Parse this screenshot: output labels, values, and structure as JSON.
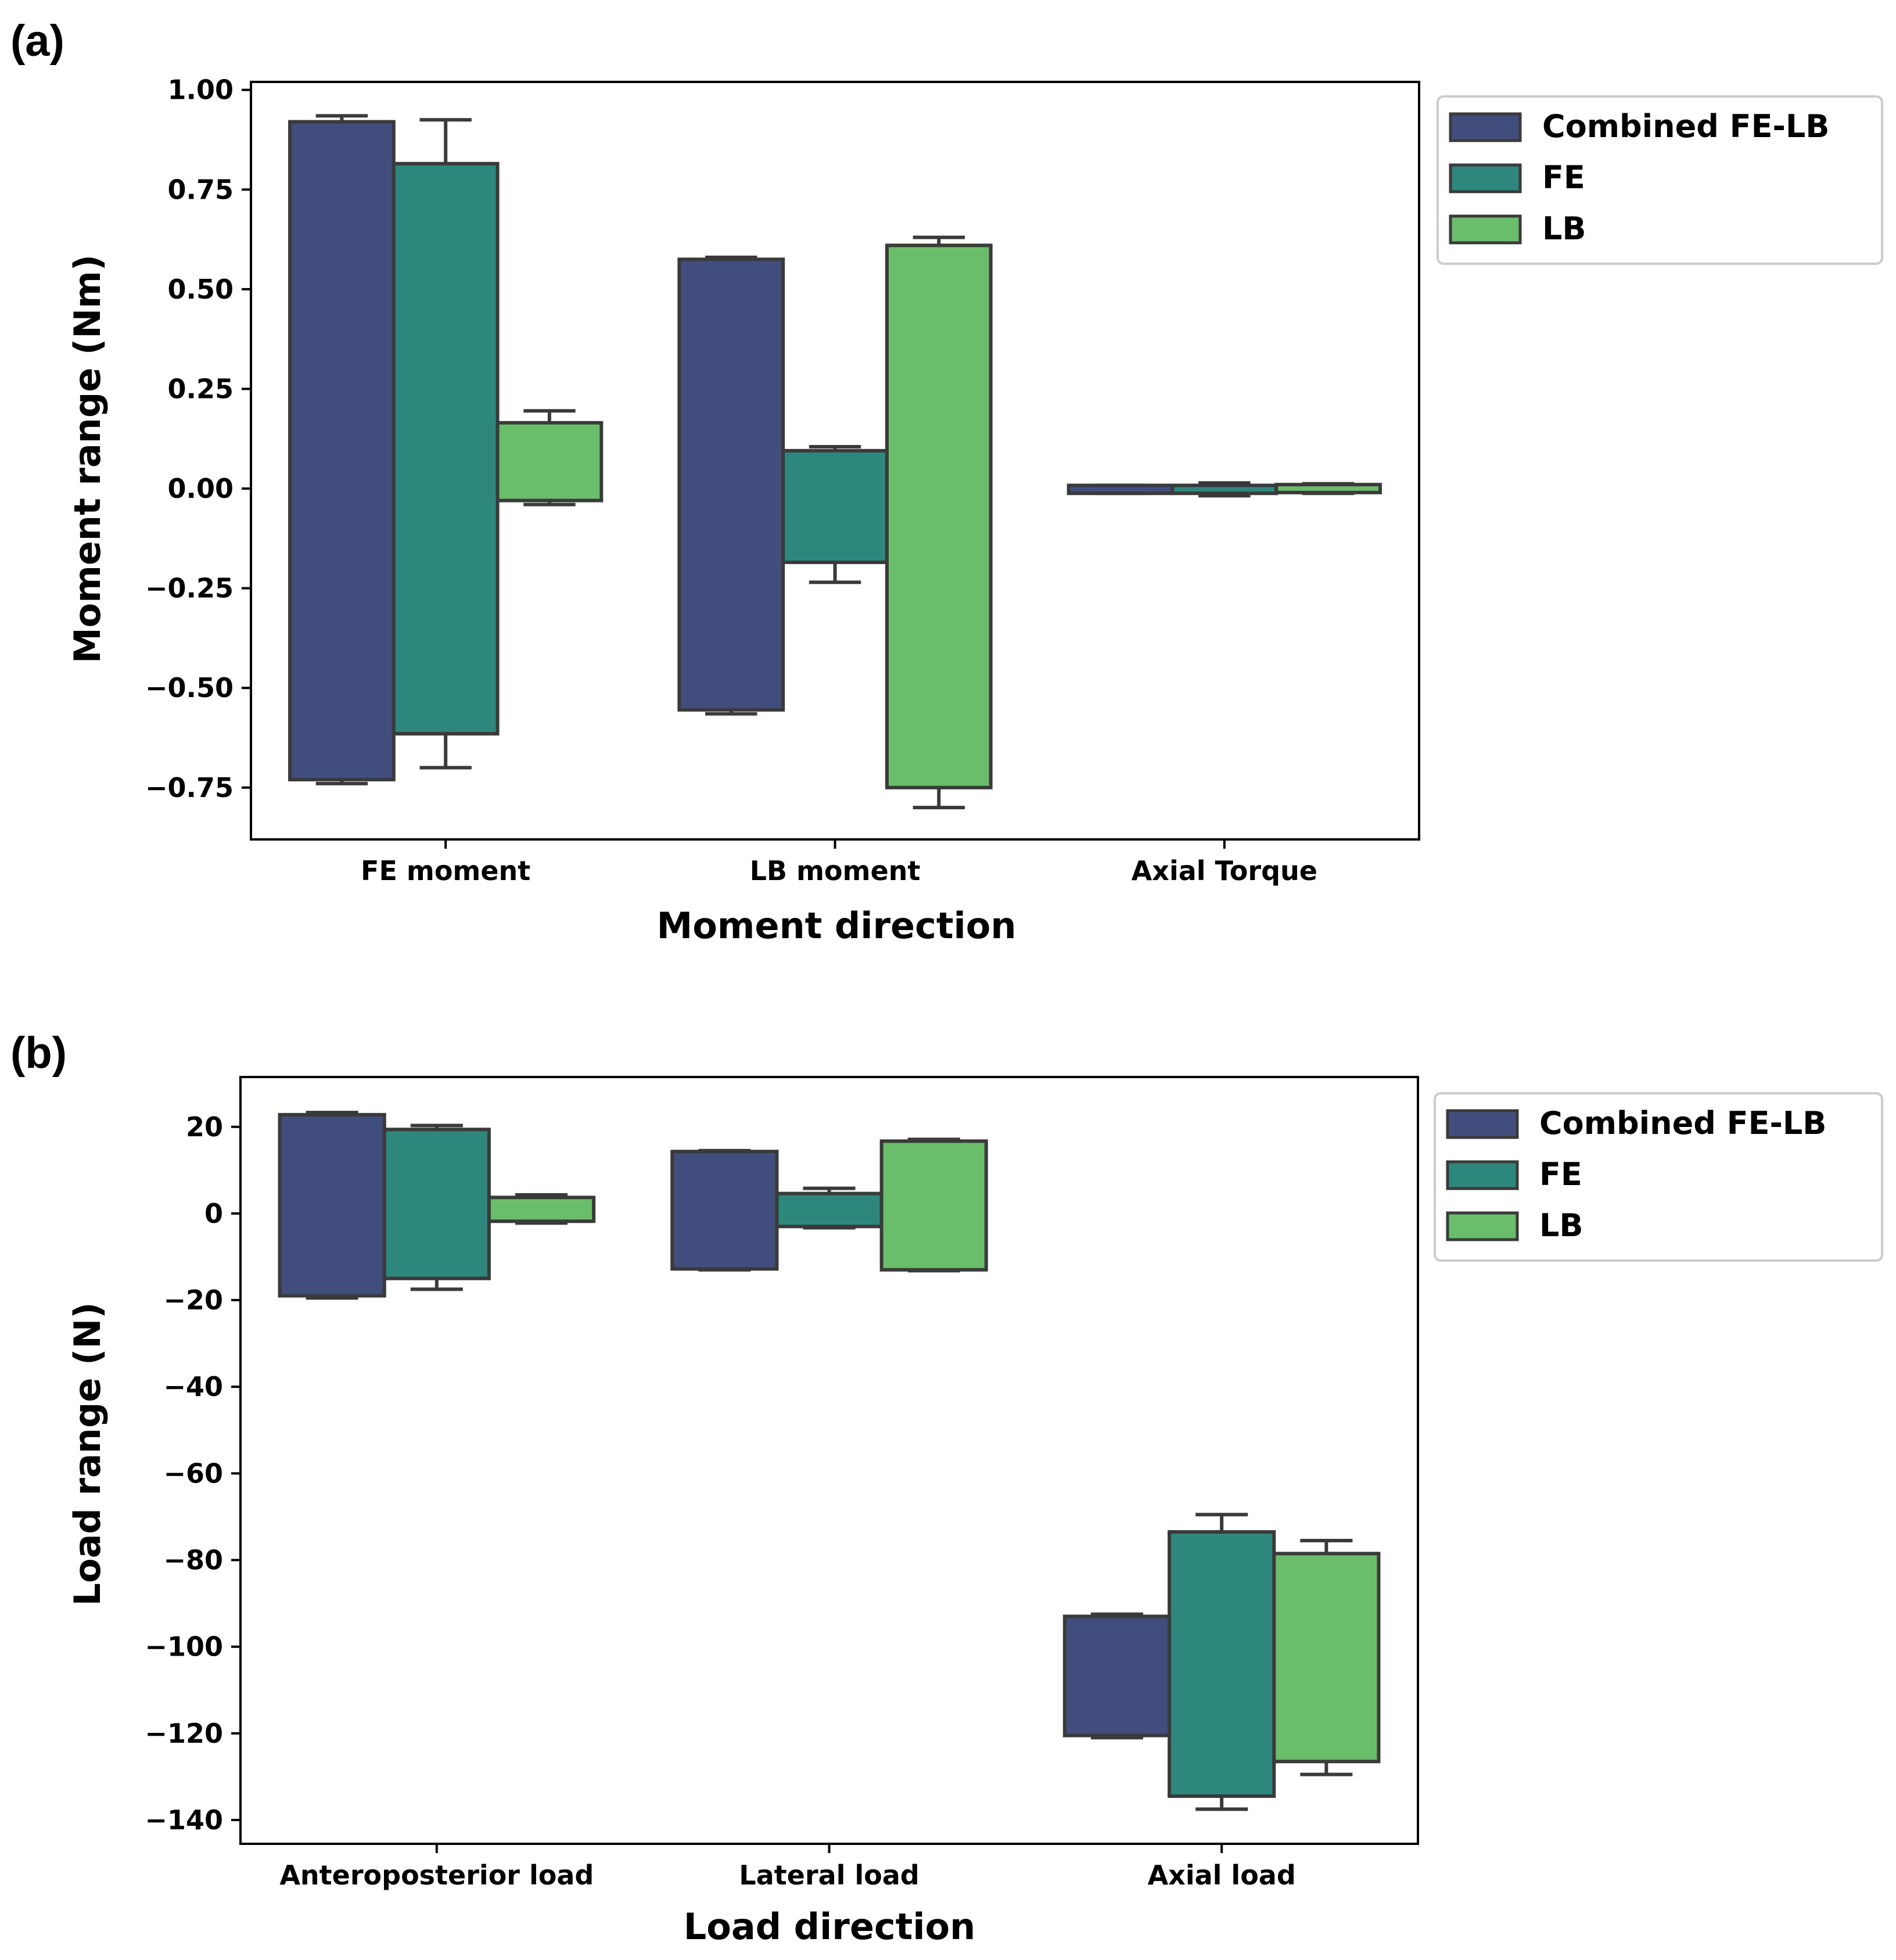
{
  "colors": {
    "Combined FE-LB": "#414E7D",
    "FE": "#2E877D",
    "LB": "#6ABD6A",
    "edge": "#3A3A3A",
    "frame": "#000000"
  },
  "chart_data": [
    {
      "type": "box",
      "panel_label": "(a)",
      "title": "",
      "xlabel": "Moment direction",
      "ylabel": "Moment range (Nm)",
      "categories": [
        "FE moment",
        "LB moment",
        "Axial Torque"
      ],
      "ylim": [
        -0.88,
        1.02
      ],
      "yticks": [
        -0.75,
        -0.5,
        -0.25,
        0.0,
        0.25,
        0.5,
        0.75,
        1.0
      ],
      "ytick_labels": [
        "−0.75",
        "−0.50",
        "−0.25",
        "0.00",
        "0.25",
        "0.50",
        "0.75",
        "1.00"
      ],
      "legend": {
        "position": "outside-upper-right",
        "entries": [
          "Combined FE-LB",
          "FE",
          "LB"
        ]
      },
      "series": [
        {
          "name": "Combined FE-LB",
          "boxes": [
            {
              "whisker_low": -0.74,
              "q1": -0.73,
              "q3": 0.92,
              "whisker_high": 0.935
            },
            {
              "whisker_low": -0.565,
              "q1": -0.555,
              "q3": 0.575,
              "whisker_high": 0.58
            },
            {
              "whisker_low": -0.012,
              "q1": -0.012,
              "q3": 0.008,
              "whisker_high": 0.008
            }
          ]
        },
        {
          "name": "FE",
          "boxes": [
            {
              "whisker_low": -0.7,
              "q1": -0.615,
              "q3": 0.815,
              "whisker_high": 0.925
            },
            {
              "whisker_low": -0.235,
              "q1": -0.185,
              "q3": 0.095,
              "whisker_high": 0.105
            },
            {
              "whisker_low": -0.018,
              "q1": -0.012,
              "q3": 0.008,
              "whisker_high": 0.014
            }
          ]
        },
        {
          "name": "LB",
          "boxes": [
            {
              "whisker_low": -0.04,
              "q1": -0.03,
              "q3": 0.165,
              "whisker_high": 0.195
            },
            {
              "whisker_low": -0.8,
              "q1": -0.75,
              "q3": 0.61,
              "whisker_high": 0.63
            },
            {
              "whisker_low": -0.012,
              "q1": -0.01,
              "q3": 0.01,
              "whisker_high": 0.012
            }
          ]
        }
      ]
    },
    {
      "type": "box",
      "panel_label": "(b)",
      "title": "",
      "xlabel": "Load direction",
      "ylabel": "Load range (N)",
      "categories": [
        "Anteroposterior load",
        "Lateral load",
        "Axial load"
      ],
      "ylim": [
        -145.5,
        31.5
      ],
      "yticks": [
        -140,
        -120,
        -100,
        -80,
        -60,
        -40,
        -20,
        0,
        20
      ],
      "ytick_labels": [
        "−140",
        "−120",
        "−100",
        "−80",
        "−60",
        "−40",
        "−20",
        "0",
        "20"
      ],
      "legend": {
        "position": "outside-upper-right",
        "entries": [
          "Combined FE-LB",
          "FE",
          "LB"
        ]
      },
      "series": [
        {
          "name": "Combined FE-LB",
          "boxes": [
            {
              "whisker_low": -19.5,
              "q1": -19,
              "q3": 22.8,
              "whisker_high": 23.3
            },
            {
              "whisker_low": -13,
              "q1": -12.8,
              "q3": 14.3,
              "whisker_high": 14.5
            },
            {
              "whisker_low": -121,
              "q1": -120.5,
              "q3": -93,
              "whisker_high": -92.5
            }
          ]
        },
        {
          "name": "FE",
          "boxes": [
            {
              "whisker_low": -17.5,
              "q1": -15,
              "q3": 19.4,
              "whisker_high": 20.3
            },
            {
              "whisker_low": -3.3,
              "q1": -3,
              "q3": 4.6,
              "whisker_high": 5.8
            },
            {
              "whisker_low": -137.5,
              "q1": -134.5,
              "q3": -73.5,
              "whisker_high": -69.5
            }
          ]
        },
        {
          "name": "LB",
          "boxes": [
            {
              "whisker_low": -2.2,
              "q1": -1.8,
              "q3": 3.7,
              "whisker_high": 4.3
            },
            {
              "whisker_low": -13.2,
              "q1": -13,
              "q3": 16.7,
              "whisker_high": 17.1
            },
            {
              "whisker_low": -129.5,
              "q1": -126.5,
              "q3": -78.5,
              "whisker_high": -75.5
            }
          ]
        }
      ]
    }
  ]
}
